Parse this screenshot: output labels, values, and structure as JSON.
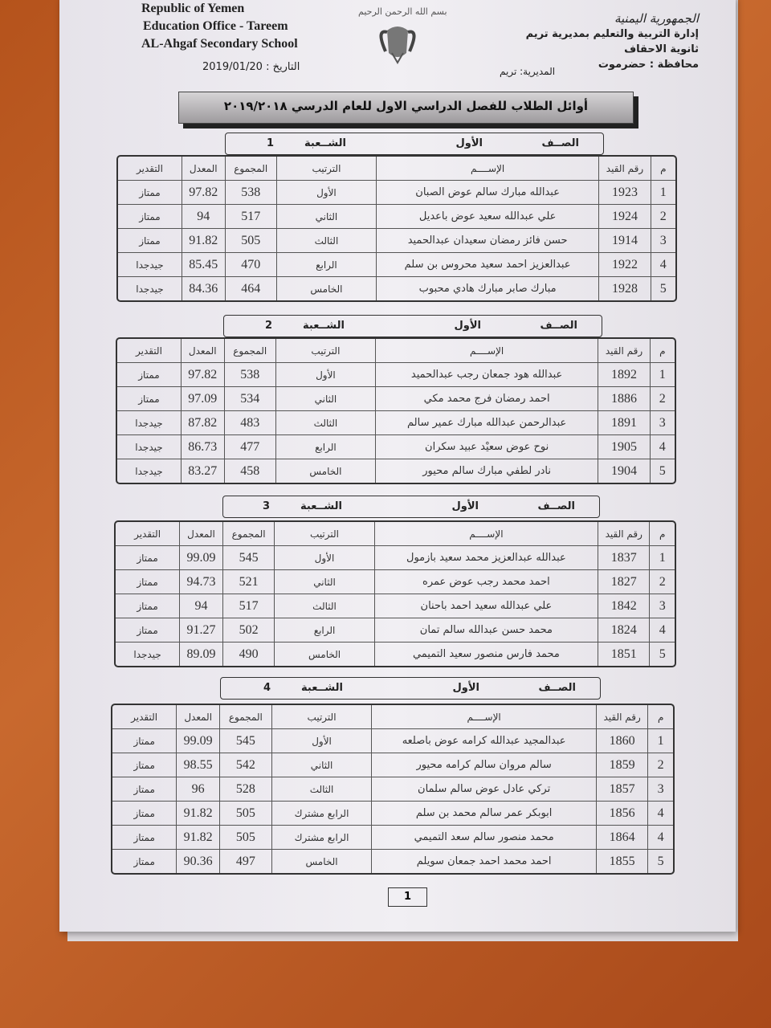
{
  "header": {
    "en_lines": [
      "Republic of Yemen",
      "Education Office  -  Tareem",
      "AL-Ahgaf Secondary School"
    ],
    "date_label": "التاريخ : 2019/01/20",
    "ar_lines": [
      "الجمهورية اليمنية",
      "إدارة التربية والتعليم بمديرية تريم",
      "ثانوية الاحقاف",
      "محافظة : حضرموت"
    ],
    "directorate": "المديرية: تريم",
    "basmala": "بسم الله الرحمن الرحيم"
  },
  "title": "أوائل الطلاب للفصل الدراسي الاول للعام الدرسي  ٢٠١٩/٢٠١٨",
  "columns": [
    "م",
    "رقم القيد",
    "الإســــم",
    "الترتيب",
    "المجموع",
    "المعدل",
    "التقدير"
  ],
  "sections": [
    {
      "class_label": "الصــف",
      "class_value": "الأول",
      "section_label": "الشــعبة",
      "section_value": "1",
      "rows": [
        [
          "1",
          "1923",
          "عبدالله مبارك سالم عوض الصبان",
          "الأول",
          "538",
          "97.82",
          "ممتاز"
        ],
        [
          "2",
          "1924",
          "علي عبدالله سعيد عوض باعديل",
          "الثاني",
          "517",
          "94",
          "ممتاز"
        ],
        [
          "3",
          "1914",
          "حسن فائز رمضان سعيدان عبدالحميد",
          "الثالث",
          "505",
          "91.82",
          "ممتاز"
        ],
        [
          "4",
          "1922",
          "عبدالعزيز احمد سعيد محروس بن سلم",
          "الرابع",
          "470",
          "85.45",
          "جيدجدا"
        ],
        [
          "5",
          "1928",
          "مبارك صابر مبارك هادي محبوب",
          "الخامس",
          "464",
          "84.36",
          "جيدجدا"
        ]
      ]
    },
    {
      "class_label": "الصــف",
      "class_value": "الأول",
      "section_label": "الشــعبة",
      "section_value": "2",
      "rows": [
        [
          "1",
          "1892",
          "عبدالله هود جمعان رجب عبدالحميد",
          "الأول",
          "538",
          "97.82",
          "ممتاز"
        ],
        [
          "2",
          "1886",
          "احمد رمضان فرج محمد مكي",
          "الثاني",
          "534",
          "97.09",
          "ممتاز"
        ],
        [
          "3",
          "1891",
          "عبدالرحمن عبدالله مبارك عمير سالم",
          "الثالث",
          "483",
          "87.82",
          "جيدجدا"
        ],
        [
          "4",
          "1905",
          "نوح عوض سعيْد عبيد سكران",
          "الرابع",
          "477",
          "86.73",
          "جيدجدا"
        ],
        [
          "5",
          "1904",
          "نادر لطفي مبارك سالم محيور",
          "الخامس",
          "458",
          "83.27",
          "جيدجدا"
        ]
      ]
    },
    {
      "class_label": "الصــف",
      "class_value": "الأول",
      "section_label": "الشــعبة",
      "section_value": "3",
      "rows": [
        [
          "1",
          "1837",
          "عبدالله عبدالعزيز محمد سعيد بازمول",
          "الأول",
          "545",
          "99.09",
          "ممتاز"
        ],
        [
          "2",
          "1827",
          "احمد محمد رجب عوض عمره",
          "الثاني",
          "521",
          "94.73",
          "ممتاز"
        ],
        [
          "3",
          "1842",
          "علي عبدالله سعيد احمد باحنان",
          "الثالث",
          "517",
          "94",
          "ممتاز"
        ],
        [
          "4",
          "1824",
          "محمد حسن عبدالله سالم تمان",
          "الرابع",
          "502",
          "91.27",
          "ممتاز"
        ],
        [
          "5",
          "1851",
          "محمد فارس منصور سعيد التميمي",
          "الخامس",
          "490",
          "89.09",
          "جيدجدا"
        ]
      ]
    },
    {
      "class_label": "الصــف",
      "class_value": "الأول",
      "section_label": "الشــعبة",
      "section_value": "4",
      "rows": [
        [
          "1",
          "1860",
          "عبدالمجيد عبدالله كرامه عوض باصلعه",
          "الأول",
          "545",
          "99.09",
          "ممتاز"
        ],
        [
          "2",
          "1859",
          "سالم مروان سالم كرامه محيور",
          "الثاني",
          "542",
          "98.55",
          "ممتاز"
        ],
        [
          "3",
          "1857",
          "تركي عادل عوض سالم سلمان",
          "الثالث",
          "528",
          "96",
          "ممتاز"
        ],
        [
          "4",
          "1856",
          "ابوبكر عمر سالم محمد بن سلم",
          "الرابع   مشترك",
          "505",
          "91.82",
          "ممتاز"
        ],
        [
          "4",
          "1864",
          "محمد منصور سالم سعد التميمي",
          "الرابع   مشترك",
          "505",
          "91.82",
          "ممتاز"
        ],
        [
          "5",
          "1855",
          "احمد محمد احمد جمعان سويلم",
          "الخامس",
          "497",
          "90.36",
          "ممتاز"
        ]
      ]
    }
  ],
  "page_number": "1"
}
